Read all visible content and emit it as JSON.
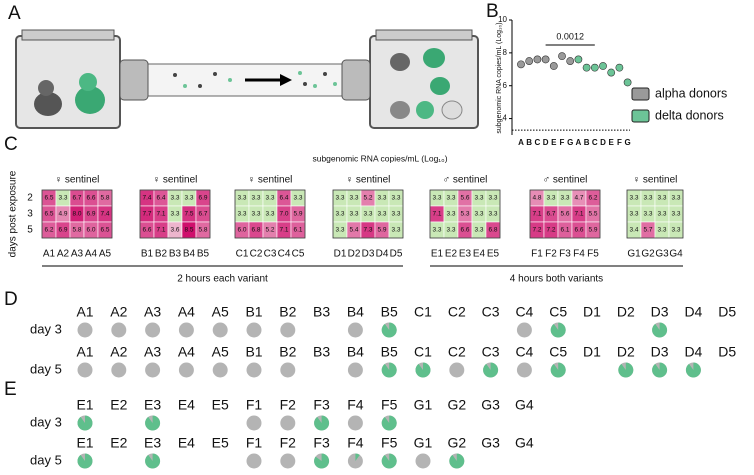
{
  "panels": {
    "a": "A",
    "b": "B",
    "c": "C",
    "d": "D",
    "e": "E"
  },
  "chart_data": {
    "type": "dot",
    "ylabel": "subgenomic RNA copies/mL (Log₁₀)",
    "ylim": [
      3,
      10
    ],
    "yticks": [
      4,
      6,
      8,
      10
    ],
    "detection_limit": 3.3,
    "categories": [
      "A",
      "B",
      "C",
      "D",
      "E",
      "F",
      "G",
      "A",
      "B",
      "C",
      "D",
      "E",
      "F",
      "G"
    ],
    "series": [
      {
        "name": "alpha donors",
        "color": "#9a9a9a",
        "values": [
          7.3,
          7.5,
          7.6,
          7.6,
          7.2,
          7.8,
          7.5,
          null,
          null,
          null,
          null,
          null,
          null,
          null
        ]
      },
      {
        "name": "delta donors",
        "color": "#6cc497",
        "values": [
          null,
          null,
          null,
          null,
          null,
          null,
          null,
          7.6,
          7.1,
          7.1,
          7.2,
          6.8,
          7.1,
          6.2
        ]
      }
    ],
    "annotation": "0.0012"
  },
  "heatmap": {
    "title": "subgenomic RNA copies/mL (Log₁₀)",
    "ylabel": "days post exposure",
    "row_labels": [
      "2",
      "3",
      "5"
    ],
    "groups": [
      {
        "title": "♀ sentinel",
        "columns": [
          "A1",
          "A2",
          "A3",
          "A4",
          "A5"
        ],
        "cells": [
          [
            "6.5",
            "3.3",
            "6.7",
            "6.6",
            "5.8"
          ],
          [
            "6.5",
            "4.9",
            "8.0",
            "6.9",
            "7.4"
          ],
          [
            "6.2",
            "6.9",
            "5.8",
            "6.0",
            "6.5"
          ]
        ]
      },
      {
        "title": "♀ sentinel",
        "columns": [
          "B1",
          "B2",
          "B3",
          "B4",
          "B5"
        ],
        "cells": [
          [
            "7.4",
            "6.4",
            "3.3",
            "3.3",
            "6.9"
          ],
          [
            "7.7",
            "7.1",
            "3.3",
            "7.5",
            "6.7"
          ],
          [
            "6.6",
            "7.1",
            "3.6",
            "8.5",
            "5.8"
          ]
        ]
      },
      {
        "title": "♀ sentinel",
        "columns": [
          "C1",
          "C2",
          "C3",
          "C4",
          "C5"
        ],
        "cells": [
          [
            "3.3",
            "3.3",
            "3.3",
            "6.4",
            "3.3"
          ],
          [
            "3.3",
            "3.3",
            "3.3",
            "7.0",
            "5.9"
          ],
          [
            "6.0",
            "6.8",
            "5.2",
            "7.1",
            "6.1"
          ]
        ]
      },
      {
        "title": "♀ sentinel",
        "columns": [
          "D1",
          "D2",
          "D3",
          "D4",
          "D5"
        ],
        "cells": [
          [
            "3.3",
            "3.3",
            "5.2",
            "3.3",
            "3.3"
          ],
          [
            "3.3",
            "3.3",
            "3.3",
            "3.3",
            "3.3"
          ],
          [
            "3.3",
            "5.4",
            "7.3",
            "5.9",
            "3.3"
          ]
        ]
      },
      {
        "title": "♂ sentinel",
        "columns": [
          "E1",
          "E2",
          "E3",
          "E4",
          "E5"
        ],
        "cells": [
          [
            "3.3",
            "3.3",
            "5.6",
            "3.3",
            "3.3"
          ],
          [
            "7.1",
            "3.3",
            "5.3",
            "3.3",
            "3.3"
          ],
          [
            "3.3",
            "3.3",
            "6.6",
            "3.3",
            "6.8"
          ]
        ]
      },
      {
        "title": "♂ sentinel",
        "columns": [
          "F1",
          "F2",
          "F3",
          "F4",
          "F5"
        ],
        "cells": [
          [
            "4.8",
            "3.3",
            "3.3",
            "4.7",
            "6.2"
          ],
          [
            "7.1",
            "6.7",
            "5.6",
            "7.1",
            "5.5"
          ],
          [
            "7.2",
            "7.2",
            "6.1",
            "6.6",
            "5.9"
          ]
        ]
      },
      {
        "title": "♀ sentinel",
        "columns": [
          "G1",
          "G2",
          "G3",
          "G4"
        ],
        "cells": [
          [
            "3.3",
            "3.3",
            "3.3",
            "3.3"
          ],
          [
            "3.3",
            "3.3",
            "3.3",
            "3.3"
          ],
          [
            "3.4",
            "5.7",
            "3.3",
            "3.3"
          ]
        ]
      }
    ],
    "brackets": [
      "2 hours each variant",
      "4 hours both variants"
    ]
  },
  "pies_d": {
    "columns": [
      "A1",
      "A2",
      "A3",
      "A4",
      "A5",
      "B1",
      "B2",
      "B3",
      "B4",
      "B5",
      "C1",
      "C2",
      "C3",
      "C4",
      "C5",
      "D1",
      "D2",
      "D3",
      "D4",
      "D5"
    ],
    "rows": [
      {
        "label": "day 3",
        "delta_fraction": [
          0,
          0,
          0,
          0,
          0,
          0,
          0,
          null,
          0,
          0.9,
          null,
          null,
          null,
          0,
          0.9,
          null,
          null,
          0.9,
          null,
          null
        ]
      },
      {
        "label": "day 5",
        "delta_fraction": [
          0,
          0,
          0,
          0,
          0,
          0,
          0,
          null,
          0,
          0.9,
          0.9,
          0,
          0.9,
          0,
          0.9,
          null,
          0.9,
          0.9,
          0.9,
          null
        ]
      }
    ]
  },
  "pies_e": {
    "columns": [
      "E1",
      "E2",
      "E3",
      "E4",
      "E5",
      "F1",
      "F2",
      "F3",
      "F4",
      "F5",
      "G1",
      "G2",
      "G3",
      "G4"
    ],
    "rows": [
      {
        "label": "day 3",
        "delta_fraction": [
          0.9,
          null,
          0.9,
          null,
          null,
          0,
          0,
          0.9,
          0,
          0.9,
          null,
          null,
          null,
          null
        ]
      },
      {
        "label": "day 5",
        "delta_fraction": [
          0.9,
          null,
          0.9,
          null,
          null,
          0,
          0,
          0.85,
          0.1,
          0.9,
          0,
          0.9,
          null,
          null
        ]
      }
    ]
  }
}
